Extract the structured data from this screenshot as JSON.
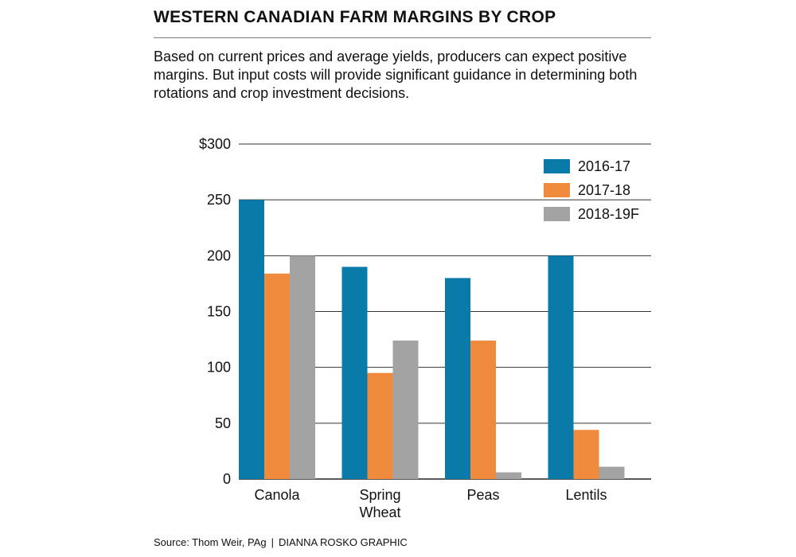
{
  "header": {
    "title": "WESTERN CANADIAN FARM MARGINS BY CROP",
    "subtitle": "Based on current prices and average yields, producers can expect positive margins. But input costs will provide significant guidance in determining both rotations and crop investment decisions."
  },
  "footer": {
    "source": "Source:  Thom Weir, PAg",
    "separator": "|",
    "credit": "DIANNA ROSKO GRAPHIC"
  },
  "chart_data": {
    "type": "bar",
    "title": "WESTERN CANADIAN FARM MARGINS BY CROP",
    "subtitle": "Based on current prices and average yields, producers can expect positive margins. But input costs will provide significant guidance in determining both rotations and crop investment decisions.",
    "xlabel": "",
    "ylabel": "",
    "categories": [
      [
        "Canola"
      ],
      [
        "Spring",
        "Wheat"
      ],
      [
        "Peas"
      ],
      [
        "Lentils"
      ]
    ],
    "series": [
      {
        "name": "2016-17",
        "color": "#0a7aa8",
        "values": [
          250,
          190,
          180,
          200
        ]
      },
      {
        "name": "2017-18",
        "color": "#f08a3c",
        "values": [
          184,
          95,
          124,
          44
        ]
      },
      {
        "name": "2018-19F",
        "color": "#a3a3a3",
        "values": [
          200,
          124,
          6,
          11
        ]
      }
    ],
    "ylim": [
      0,
      300
    ],
    "yticks": [
      0,
      50,
      100,
      150,
      200,
      250,
      300
    ],
    "ytick_labels": [
      "0",
      "50",
      "100",
      "150",
      "200",
      "250",
      "$300"
    ],
    "grid": true,
    "legend_position": "top-right"
  }
}
